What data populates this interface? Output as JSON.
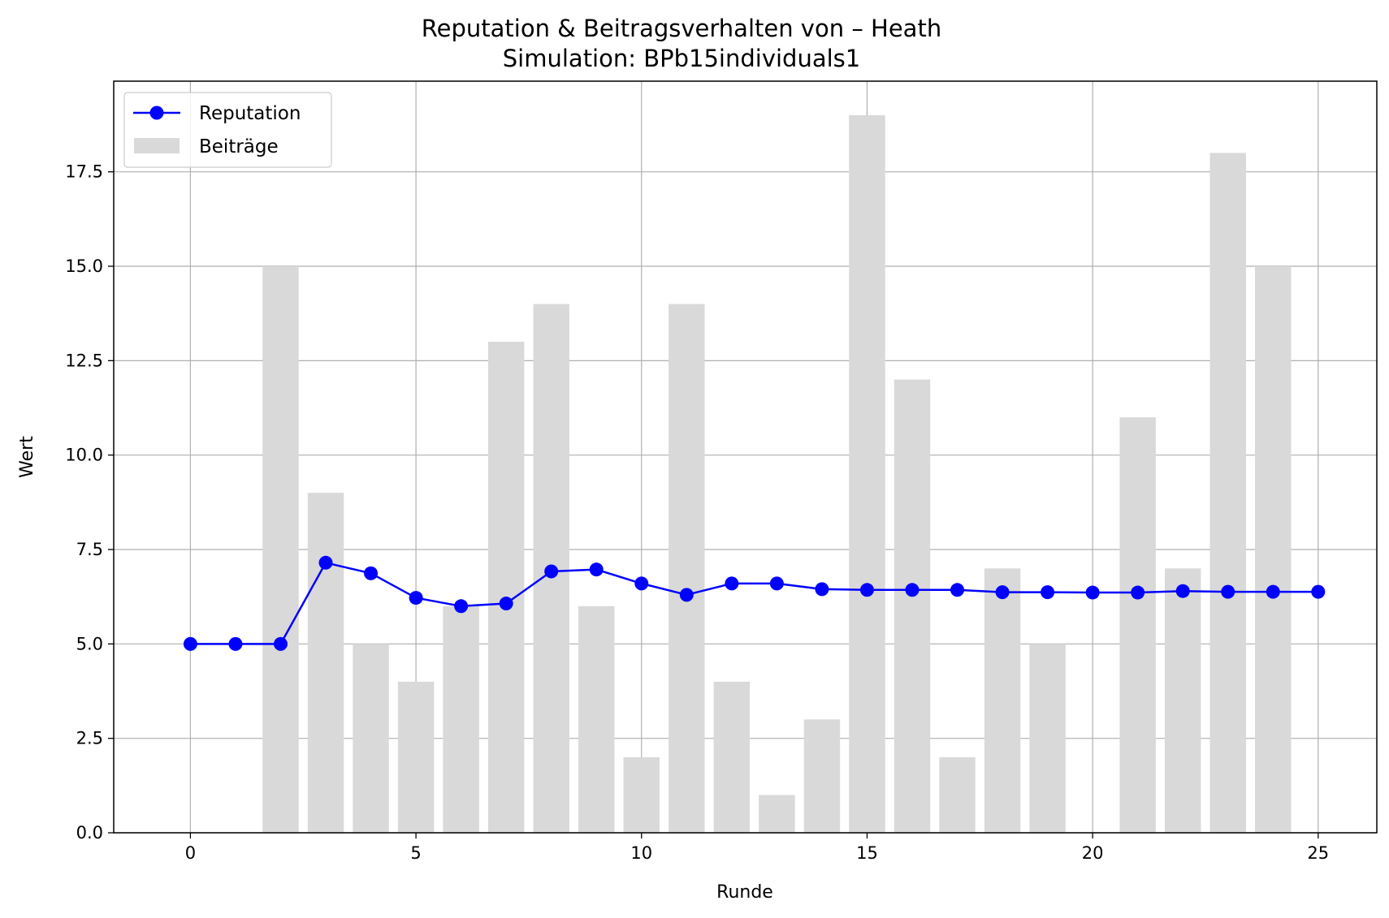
{
  "chart_data": {
    "type": "bar+line",
    "title": "Reputation & Beitragsverhalten von – Heath",
    "subtitle": "Simulation: BPb15individuals1",
    "xlabel": "Runde",
    "ylabel": "Wert",
    "xlim": [
      -1.7,
      26.3
    ],
    "ylim": [
      0,
      19.9
    ],
    "xticks": [
      0,
      5,
      10,
      15,
      20,
      25
    ],
    "yticks": [
      0.0,
      2.5,
      5.0,
      7.5,
      10.0,
      12.5,
      15.0,
      17.5
    ],
    "ytick_labels": [
      "0.0",
      "2.5",
      "5.0",
      "7.5",
      "10.0",
      "12.5",
      "15.0",
      "17.5"
    ],
    "grid": true,
    "legend_position": "top-left",
    "series": [
      {
        "name": "Reputation",
        "kind": "line",
        "color": "#0000ff",
        "marker": "circle",
        "x": [
          0,
          1,
          2,
          3,
          4,
          5,
          6,
          7,
          8,
          9,
          10,
          11,
          12,
          13,
          14,
          15,
          16,
          17,
          18,
          19,
          20,
          21,
          22,
          23,
          24,
          25
        ],
        "values": [
          5.0,
          5.0,
          5.0,
          7.15,
          6.87,
          6.22,
          6.0,
          6.07,
          6.92,
          6.97,
          6.6,
          6.3,
          6.6,
          6.6,
          6.45,
          6.43,
          6.43,
          6.43,
          6.37,
          6.37,
          6.36,
          6.36,
          6.4,
          6.38,
          6.38,
          6.38
        ]
      },
      {
        "name": "Beiträge",
        "kind": "bar",
        "color": "#d9d9d9",
        "x": [
          0,
          1,
          2,
          3,
          4,
          5,
          6,
          7,
          8,
          9,
          10,
          11,
          12,
          13,
          14,
          15,
          16,
          17,
          18,
          19,
          20,
          21,
          22,
          23,
          24,
          25
        ],
        "values": [
          0,
          0,
          15,
          9,
          5,
          4,
          6,
          13,
          14,
          6,
          2,
          14,
          4,
          1,
          3,
          19,
          12,
          2,
          7,
          5,
          0,
          11,
          7,
          18,
          15,
          0
        ]
      }
    ]
  }
}
